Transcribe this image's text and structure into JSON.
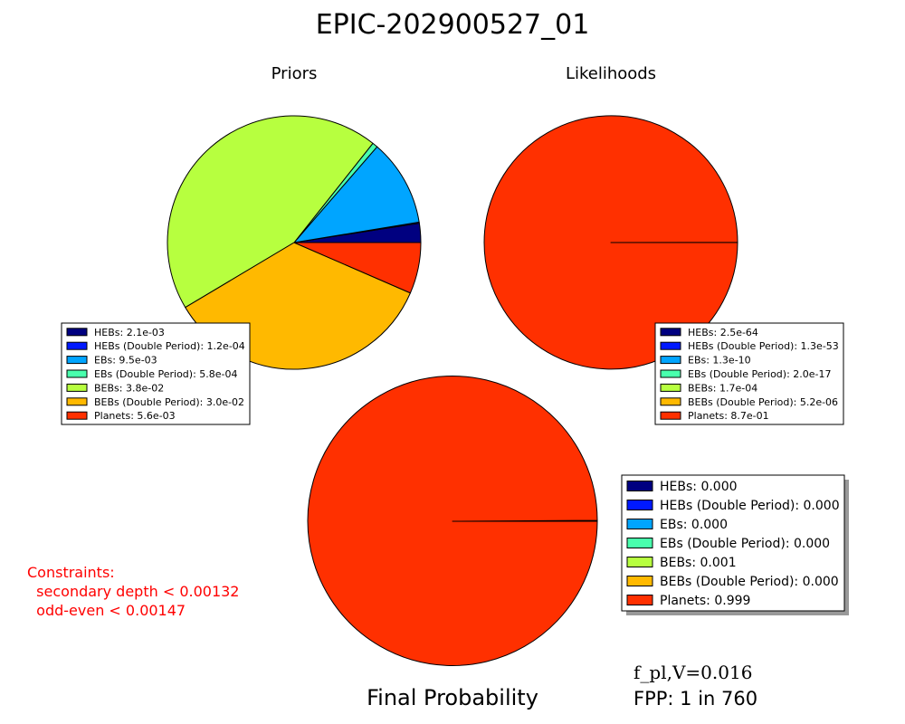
{
  "title": "EPIC-202900527_01",
  "constraints": {
    "heading": "Constraints:",
    "lines": [
      "secondary depth < 0.00132",
      "odd-even < 0.00147"
    ],
    "color": "#ff0000"
  },
  "fpl_label": "f_pl,V=0.016",
  "fpp_label": "FPP: 1 in 760",
  "chart_data": [
    {
      "type": "pie",
      "title": "Priors",
      "categories": [
        "HEBs",
        "HEBs (Double Period)",
        "EBs",
        "EBs (Double Period)",
        "BEBs",
        "BEBs (Double Period)",
        "Planets"
      ],
      "colors": [
        "#000080",
        "#0019ff",
        "#00a5ff",
        "#49ffad",
        "#b7ff3f",
        "#ffb900",
        "#ff3000"
      ],
      "values": [
        0.0021,
        0.00012,
        0.0095,
        0.00058,
        0.038,
        0.03,
        0.0056
      ],
      "legend": [
        "HEBs: 2.1e-03",
        "HEBs (Double Period): 1.2e-04",
        "EBs: 9.5e-03",
        "EBs (Double Period): 5.8e-04",
        "BEBs: 3.8e-02",
        "BEBs (Double Period): 3.0e-02",
        "Planets: 5.6e-03"
      ],
      "legend_position": "lower-left"
    },
    {
      "type": "pie",
      "title": "Likelihoods",
      "categories": [
        "HEBs",
        "HEBs (Double Period)",
        "EBs",
        "EBs (Double Period)",
        "BEBs",
        "BEBs (Double Period)",
        "Planets"
      ],
      "colors": [
        "#000080",
        "#0019ff",
        "#00a5ff",
        "#49ffad",
        "#b7ff3f",
        "#ffb900",
        "#ff3000"
      ],
      "values": [
        2.5e-64,
        1.3e-53,
        1.3e-10,
        2e-17,
        0.00017,
        5.2e-06,
        0.87
      ],
      "legend": [
        "HEBs: 2.5e-64",
        "HEBs (Double Period): 1.3e-53",
        "EBs: 1.3e-10",
        "EBs (Double Period): 2.0e-17",
        "BEBs: 1.7e-04",
        "BEBs (Double Period): 5.2e-06",
        "Planets: 8.7e-01"
      ],
      "legend_position": "lower-right"
    },
    {
      "type": "pie",
      "title": "Final Probability",
      "categories": [
        "HEBs",
        "HEBs (Double Period)",
        "EBs",
        "EBs (Double Period)",
        "BEBs",
        "BEBs (Double Period)",
        "Planets"
      ],
      "colors": [
        "#000080",
        "#0019ff",
        "#00a5ff",
        "#49ffad",
        "#b7ff3f",
        "#ffb900",
        "#ff3000"
      ],
      "values": [
        0.0,
        0.0,
        0.0,
        0.0,
        0.001,
        0.0,
        0.999
      ],
      "legend": [
        "HEBs: 0.000",
        "HEBs (Double Period): 0.000",
        "EBs: 0.000",
        "EBs (Double Period): 0.000",
        "BEBs: 0.001",
        "BEBs (Double Period): 0.000",
        "Planets: 0.999"
      ],
      "legend_position": "right"
    }
  ]
}
